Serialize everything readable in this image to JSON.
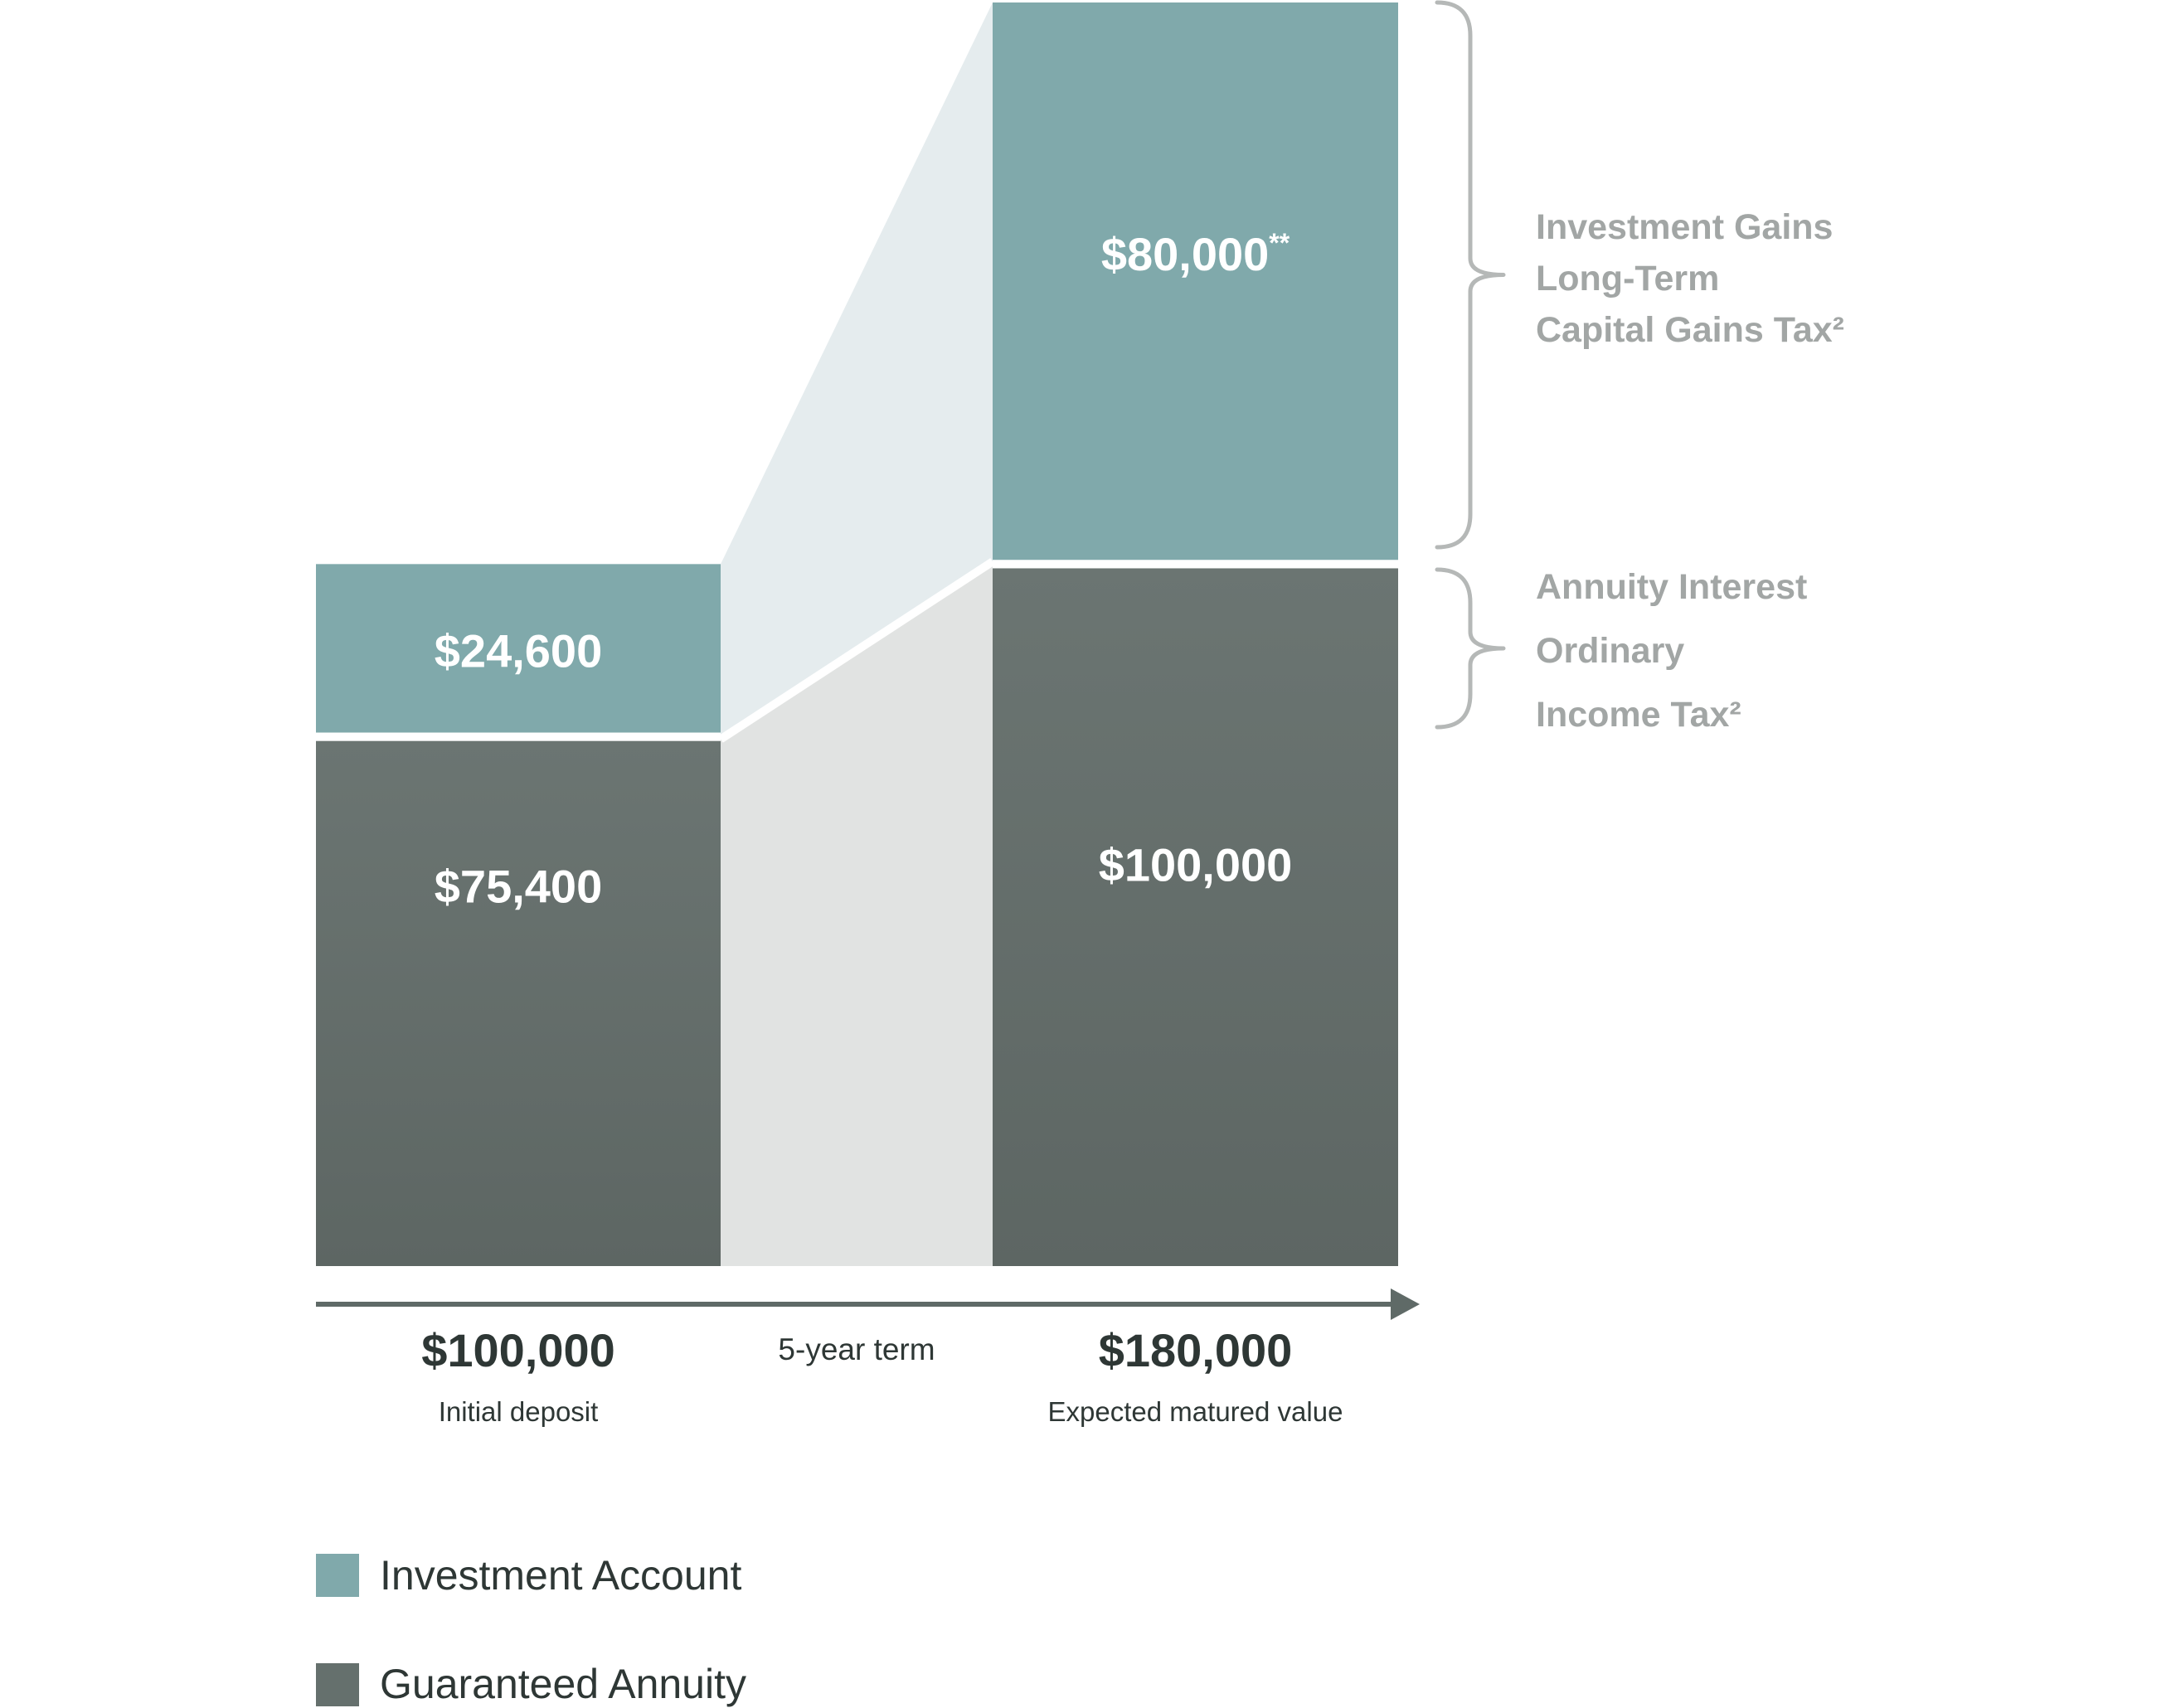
{
  "chart_data": {
    "type": "bar",
    "stacked": true,
    "categories": [
      "Initial deposit",
      "Expected matured value"
    ],
    "series": [
      {
        "name": "Guaranteed Annuity",
        "values": [
          75400,
          100000
        ]
      },
      {
        "name": "Investment Account",
        "values": [
          24600,
          80000
        ]
      }
    ],
    "bar_labels": {
      "Guaranteed Annuity": [
        "$75,400",
        "$100,000"
      ],
      "Investment Account": [
        "$24,600",
        "$80,000**"
      ]
    },
    "totals": [
      {
        "value": 100000,
        "label": "$100,000",
        "caption": "Initial deposit"
      },
      {
        "value": 180000,
        "label": "$180,000",
        "caption": "Expected matured value"
      }
    ],
    "term_label": "5-year term",
    "ylim": [
      0,
      180000
    ],
    "grid": false,
    "legend_position": "bottom-left",
    "annotations": [
      {
        "series": "Investment Account",
        "lines": [
          "Investment Gains",
          "Long-Term",
          "Capital Gains Tax²"
        ]
      },
      {
        "series": "Guaranteed Annuity",
        "lines": [
          "Annuity Interest",
          "Ordinary",
          "Income Tax²"
        ]
      }
    ],
    "colors": {
      "Investment Account": "#80a9ab",
      "Guaranteed Annuity": "#65706d",
      "investment_band": "#e5ecee",
      "annuity_band": "#e1e3e2",
      "axis": "#5f6a67",
      "annotation_text": "#a2a6a5",
      "bracket": "#b5b8b7"
    }
  }
}
